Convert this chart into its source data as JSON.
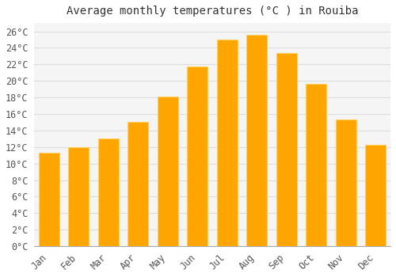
{
  "title": "Average monthly temperatures (°C ) in Rouiba",
  "months": [
    "Jan",
    "Feb",
    "Mar",
    "Apr",
    "May",
    "Jun",
    "Jul",
    "Aug",
    "Sep",
    "Oct",
    "Nov",
    "Dec"
  ],
  "temperatures": [
    11.3,
    12.0,
    13.0,
    15.0,
    18.1,
    21.7,
    25.0,
    25.6,
    23.4,
    19.6,
    15.3,
    12.3
  ],
  "bar_color_main": "#FFA500",
  "bar_color_edge": "#FFD060",
  "background_color": "#FFFFFF",
  "plot_bg_color": "#F5F5F5",
  "grid_color": "#DDDDDD",
  "ylim": [
    0,
    27
  ],
  "ytick_step": 2,
  "title_fontsize": 10,
  "tick_fontsize": 8.5,
  "font_family": "monospace"
}
